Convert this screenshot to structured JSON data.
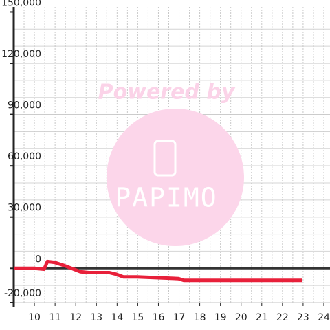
{
  "chart_data": {
    "type": "line",
    "watermark": {
      "line1": "Powered by",
      "line2": "PAPIMO"
    },
    "x": [
      9,
      10,
      10.47,
      10.63,
      10.97,
      11.47,
      11.8,
      12.23,
      12.63,
      13.63,
      13.97,
      14.3,
      14.97,
      16.97,
      17.23,
      22.97
    ],
    "series": [
      {
        "color": "#e8203a",
        "values": [
          0,
          0,
          -500,
          4000,
          3500,
          1500,
          0,
          -2000,
          -2500,
          -2500,
          -3500,
          -5000,
          -5000,
          -6000,
          -7000,
          -7000
        ]
      }
    ],
    "xlim": [
      9,
      24.3
    ],
    "ylim": [
      -20000,
      153000
    ],
    "xticks": [
      10,
      11,
      12,
      13,
      14,
      15,
      16,
      17,
      18,
      19,
      20,
      21,
      22,
      23,
      24
    ],
    "yticks": [
      {
        "value": -20000,
        "label": "-20,000"
      },
      0,
      {
        "value": 30000,
        "label": "30,000"
      },
      {
        "value": 60000,
        "label": "60,000"
      },
      {
        "value": 90000,
        "label": "90,000"
      },
      {
        "value": 120000,
        "label": "120,000"
      },
      {
        "value": 150000,
        "label": "150,000"
      }
    ],
    "y_gridlines": [
      -10000,
      10000,
      20000,
      40000,
      50000,
      70000,
      80000,
      100000,
      110000,
      130000,
      140000
    ],
    "x_gridlines": [
      9.5,
      10,
      10.5,
      11,
      11.5,
      12,
      12.5,
      13,
      13.5,
      14,
      14.5,
      15,
      15.5,
      16,
      16.5,
      17,
      17.5,
      18,
      18.5,
      19,
      19.5,
      20,
      20.5,
      21,
      21.5,
      22,
      22.5,
      23,
      23.5,
      24
    ],
    "grid": true
  }
}
